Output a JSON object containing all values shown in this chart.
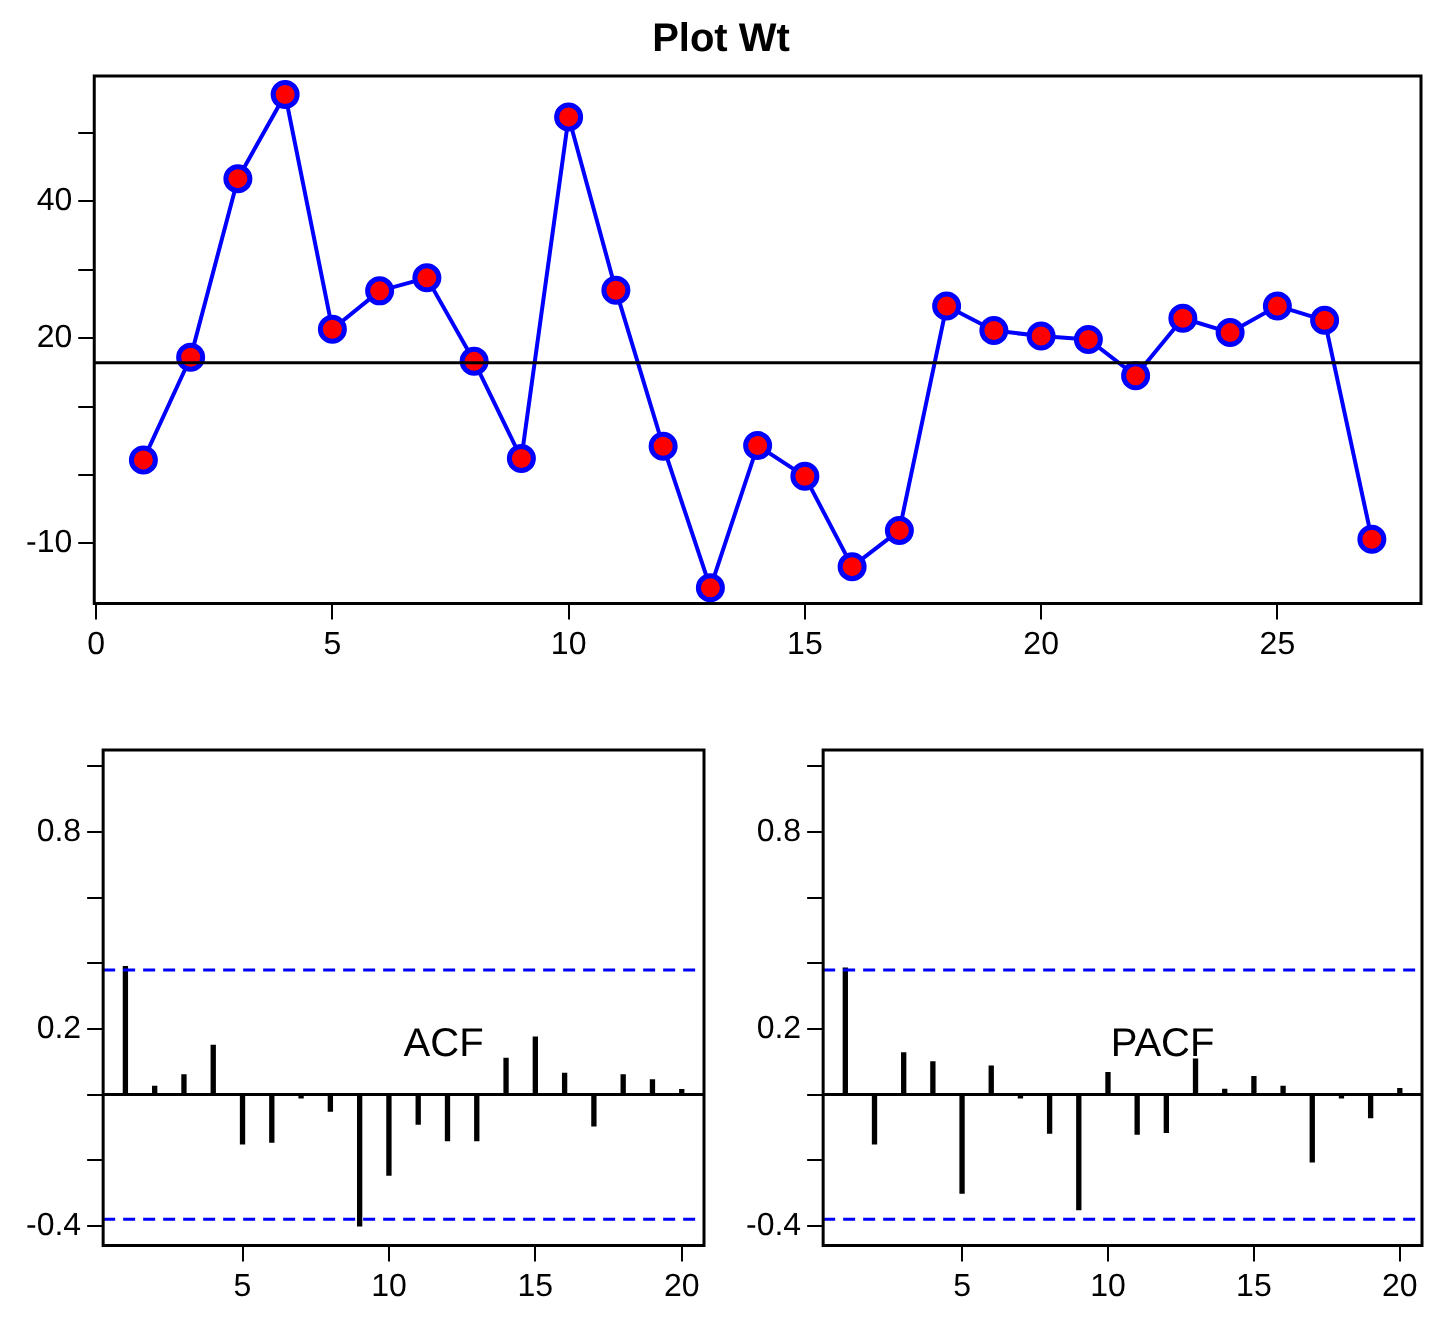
{
  "chart_data": [
    {
      "type": "line",
      "title": "Plot Wt",
      "x": [
        1,
        2,
        3,
        4,
        5,
        6,
        7,
        8,
        9,
        10,
        11,
        12,
        13,
        14,
        15,
        16,
        17,
        18,
        19,
        20,
        21,
        22,
        23,
        24,
        25,
        26,
        27
      ],
      "series": [
        {
          "color": "#0000ff",
          "values": [
            2.2,
            17.2,
            43.3,
            55.6,
            21.3,
            26.9,
            28.8,
            16.6,
            2.4,
            52.3,
            27.0,
            4.2,
            -16.5,
            4.3,
            -0.2,
            -13.4,
            -8.1,
            24.7,
            21.1,
            20.3,
            19.8,
            14.5,
            22.9,
            20.8,
            24.7,
            22.6,
            -9.4
          ]
        }
      ],
      "marker": "circle",
      "xlim": [
        -0.04,
        28.04
      ],
      "xticks": [
        0,
        5,
        10,
        15,
        20,
        25
      ],
      "ylim": [
        -18.8,
        58.3
      ],
      "yticks": [
        -10,
        {
          "value": 0,
          "label": null
        },
        {
          "value": 10,
          "label": null
        },
        20,
        {
          "value": 30,
          "label": null
        },
        40,
        {
          "value": 50,
          "label": null
        }
      ],
      "ref_lines": [
        {
          "axis": "y",
          "value": 16.4,
          "color": "#000000"
        }
      ],
      "grid": false,
      "legend": false
    },
    {
      "type": "bar",
      "annotations": [
        "ACF"
      ],
      "x": [
        1,
        2,
        3,
        4,
        5,
        6,
        7,
        8,
        9,
        10,
        11,
        12,
        13,
        14,
        15,
        16,
        17,
        18,
        19,
        20
      ],
      "series": [
        {
          "color": "#000000",
          "values": [
            0.39,
            0.025,
            0.06,
            0.15,
            -0.15,
            -0.145,
            -0.01,
            -0.05,
            -0.4,
            -0.245,
            -0.09,
            -0.14,
            -0.14,
            0.11,
            0.175,
            0.065,
            -0.095,
            0.06,
            0.045,
            0.015
          ]
        }
      ],
      "xlim": [
        0.24,
        20.76
      ],
      "xticks": [
        5,
        10,
        15,
        20
      ],
      "ylim": [
        -0.46,
        1.05
      ],
      "yticks": [
        -0.4,
        {
          "value": -0.2,
          "label": null
        },
        {
          "value": 0,
          "label": null
        },
        0.2,
        {
          "value": 0.4,
          "label": null
        },
        {
          "value": 0.6,
          "label": null
        },
        0.8,
        {
          "value": 1.0,
          "label": null
        }
      ],
      "ref_lines": [
        {
          "axis": "y",
          "value": 0,
          "color": "#000000"
        },
        {
          "axis": "y",
          "value": 0.38,
          "color": "#0000ff",
          "line_style": "dashed"
        },
        {
          "axis": "y",
          "value": -0.38,
          "color": "#0000ff",
          "line_style": "dashed"
        }
      ],
      "grid": false,
      "legend": false
    },
    {
      "type": "bar",
      "annotations": [
        "PACF"
      ],
      "x": [
        1,
        2,
        3,
        4,
        5,
        6,
        7,
        8,
        9,
        10,
        11,
        12,
        13,
        14,
        15,
        16,
        17,
        18,
        19,
        20
      ],
      "series": [
        {
          "color": "#000000",
          "values": [
            0.385,
            -0.15,
            0.127,
            0.1,
            -0.3,
            0.087,
            -0.01,
            -0.117,
            -0.35,
            0.067,
            -0.12,
            -0.115,
            0.108,
            0.016,
            0.055,
            0.025,
            -0.205,
            -0.01,
            -0.07,
            0.018
          ]
        }
      ],
      "xlim": [
        0.24,
        20.76
      ],
      "xticks": [
        5,
        10,
        15,
        20
      ],
      "ylim": [
        -0.46,
        1.05
      ],
      "yticks": [
        -0.4,
        {
          "value": -0.2,
          "label": null
        },
        {
          "value": 0,
          "label": null
        },
        0.2,
        {
          "value": 0.4,
          "label": null
        },
        {
          "value": 0.6,
          "label": null
        },
        0.8,
        {
          "value": 1.0,
          "label": null
        }
      ],
      "ref_lines": [
        {
          "axis": "y",
          "value": 0,
          "color": "#000000"
        },
        {
          "axis": "y",
          "value": 0.38,
          "color": "#0000ff",
          "line_style": "dashed"
        },
        {
          "axis": "y",
          "value": -0.38,
          "color": "#0000ff",
          "line_style": "dashed"
        }
      ],
      "grid": false,
      "legend": false
    }
  ]
}
